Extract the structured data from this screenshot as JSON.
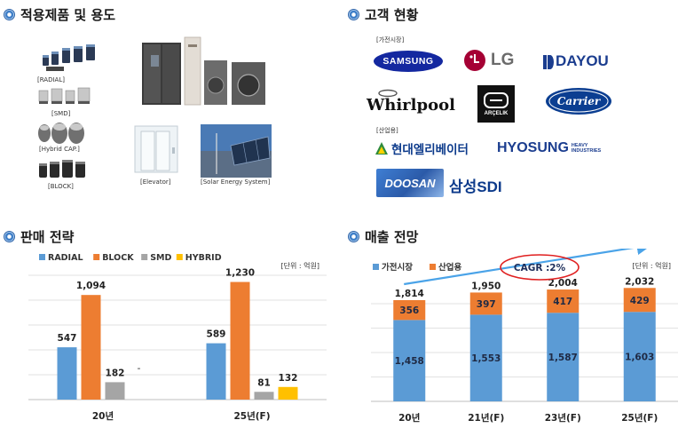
{
  "sections": {
    "products": "적용제품 및 용도",
    "customers": "고객 현황",
    "strategy": "판매 전략",
    "outlook": "매출 전망"
  },
  "products": {
    "labels": [
      "[RADIAL]",
      "[SMD]",
      "[Hybrid CAP.]",
      "[BLOCK]"
    ],
    "elevator_label": "[Elevator]",
    "solar_label": "[Solar Energy System]"
  },
  "customers": {
    "appliance_tag": "[가전시장]",
    "industrial_tag": "[산업용]",
    "logos": {
      "samsung": "SAMSUNG",
      "lg": "LG",
      "dayou": "DAYOU",
      "whirlpool": "Whirlpool",
      "arcelik": "ARÇELIK",
      "carrier": "Carrier",
      "hyundai": "현대엘리베이터",
      "hyosung": "HYOSUNG",
      "hyosung_sub1": "HEAVY",
      "hyosung_sub2": "INDUSTRIES",
      "doosan": "DOOSAN",
      "samsungsdi": "삼성SDI"
    }
  },
  "chart_data": [
    {
      "type": "bar",
      "unit": "[단위 : 억원]",
      "categories": [
        "20년",
        "25년(F)"
      ],
      "series": [
        {
          "name": "RADIAL",
          "color": "#5b9bd5",
          "values": [
            547,
            589
          ]
        },
        {
          "name": "BLOCK",
          "color": "#ed7d31",
          "values": [
            1094,
            1230
          ]
        },
        {
          "name": "SMD",
          "color": "#a5a5a5",
          "values": [
            182,
            81
          ]
        },
        {
          "name": "HYBRID",
          "color": "#ffc000",
          "values": [
            null,
            132
          ]
        }
      ],
      "missing_label": "-",
      "ylim": [
        0,
        1300
      ],
      "grid": true,
      "legend": "top"
    },
    {
      "type": "bar",
      "stacked": true,
      "unit": "[단위 : 억원]",
      "categories": [
        "20년",
        "21년(F)",
        "23년(F)",
        "25년(F)"
      ],
      "series": [
        {
          "name": "가전시장",
          "color": "#5b9bd5",
          "values": [
            1458,
            1553,
            1587,
            1603
          ]
        },
        {
          "name": "산업용",
          "color": "#ed7d31",
          "values": [
            356,
            397,
            417,
            429
          ]
        }
      ],
      "totals": [
        "1,814",
        "1,950",
        "2,004",
        "2,032"
      ],
      "annotation": "CAGR :2%",
      "ylim": [
        0,
        2100
      ],
      "grid": true,
      "legend": "top-left"
    }
  ]
}
